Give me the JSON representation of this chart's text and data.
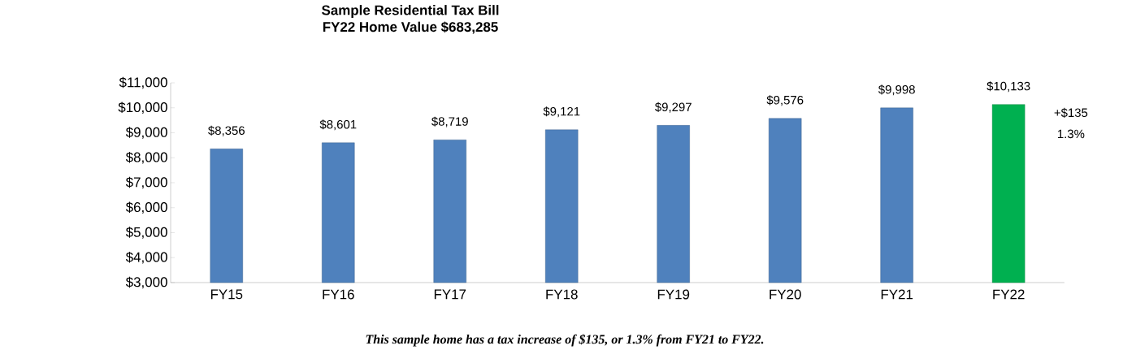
{
  "chart_data": {
    "type": "bar",
    "title": "Sample Residential Tax Bill",
    "subtitle": "FY22 Home Value $683,285",
    "categories": [
      "FY15",
      "FY16",
      "FY17",
      "FY18",
      "FY19",
      "FY20",
      "FY21",
      "FY22"
    ],
    "values": [
      8356,
      8601,
      8719,
      9121,
      9297,
      9576,
      9998,
      10133
    ],
    "colors": [
      "#4f81bd",
      "#4f81bd",
      "#4f81bd",
      "#4f81bd",
      "#4f81bd",
      "#4f81bd",
      "#4f81bd",
      "#00b050"
    ],
    "value_labels": [
      "$8,356",
      "$8,601",
      "$8,719",
      "$9,121",
      "$9,297",
      "$9,576",
      "$9,998",
      "$10,133"
    ],
    "ylim": [
      3000,
      11000
    ],
    "yticks": [
      {
        "value": 3000,
        "label": "$3,000"
      },
      {
        "value": 4000,
        "label": "$4,000"
      },
      {
        "value": 5000,
        "label": "$5,000"
      },
      {
        "value": 6000,
        "label": "$6,000"
      },
      {
        "value": 7000,
        "label": "$7,000"
      },
      {
        "value": 8000,
        "label": "$8,000"
      },
      {
        "value": 9000,
        "label": "$9,000"
      },
      {
        "value": 10000,
        "label": "$10,000"
      },
      {
        "value": 11000,
        "label": "$11,000"
      }
    ],
    "annotations": [
      "+$135",
      "1.3%",
      "*This sample home has a tax increase of $135, or 1.3% from FY21 to FY22.*"
    ],
    "grid": false
  }
}
